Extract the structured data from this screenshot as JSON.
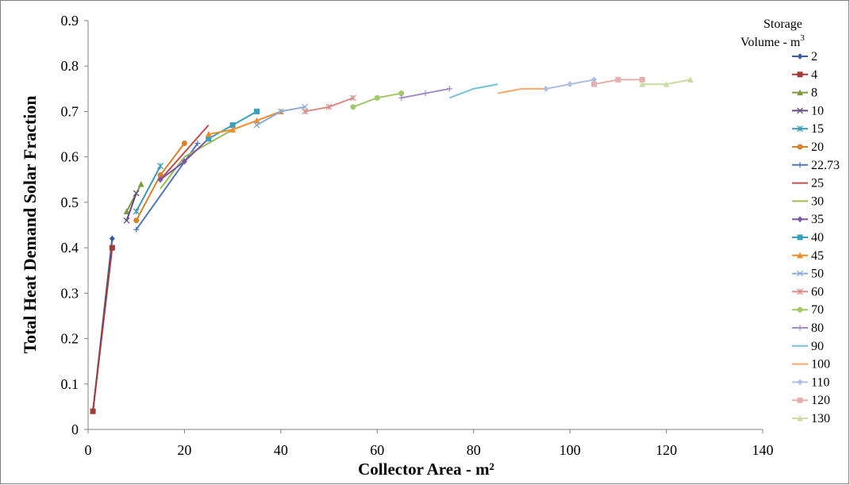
{
  "chart_data": {
    "type": "line",
    "xlabel": "Collector Area - m²",
    "ylabel": "Total Heat Demand Solar Fraction",
    "xlim": [
      0,
      140
    ],
    "ylim": [
      0,
      0.9
    ],
    "x_ticks": [
      0,
      20,
      40,
      60,
      80,
      100,
      120,
      140
    ],
    "y_ticks": [
      0,
      0.1,
      0.2,
      0.3,
      0.4,
      0.5,
      0.6,
      0.7,
      0.8,
      0.9
    ],
    "grid": false,
    "legend_title_line1": "Storage",
    "legend_title_line2": "Volume - m",
    "legend_title_sup": "3",
    "legend_position": "right",
    "series": [
      {
        "name": "2",
        "color": "#3a5f9e",
        "marker": "diamond",
        "x": [
          1,
          5
        ],
        "y": [
          0.04,
          0.42
        ]
      },
      {
        "name": "4",
        "color": "#a33b39",
        "marker": "square",
        "x": [
          1,
          5
        ],
        "y": [
          0.04,
          0.4
        ]
      },
      {
        "name": "8",
        "color": "#7f9a3f",
        "marker": "triangle",
        "x": [
          8,
          11
        ],
        "y": [
          0.48,
          0.54
        ]
      },
      {
        "name": "10",
        "color": "#634a85",
        "marker": "x",
        "x": [
          8,
          10
        ],
        "y": [
          0.46,
          0.52
        ]
      },
      {
        "name": "15",
        "color": "#3a9ab5",
        "marker": "star",
        "x": [
          10,
          15
        ],
        "y": [
          0.48,
          0.58
        ]
      },
      {
        "name": "20",
        "color": "#d9822b",
        "marker": "circle",
        "x": [
          10,
          15,
          20
        ],
        "y": [
          0.46,
          0.56,
          0.63
        ]
      },
      {
        "name": "22.73",
        "color": "#4f79bc",
        "marker": "plus",
        "x": [
          10,
          22.73
        ],
        "y": [
          0.44,
          0.63
        ]
      },
      {
        "name": "25",
        "color": "#c0504d",
        "marker": "none",
        "x": [
          15,
          25
        ],
        "y": [
          0.55,
          0.67
        ]
      },
      {
        "name": "30",
        "color": "#9bbb59",
        "marker": "none",
        "x": [
          15,
          20,
          30
        ],
        "y": [
          0.53,
          0.6,
          0.66
        ]
      },
      {
        "name": "35",
        "color": "#7a56a4",
        "marker": "diamond",
        "x": [
          15,
          20,
          25
        ],
        "y": [
          0.55,
          0.59,
          0.64
        ]
      },
      {
        "name": "40",
        "color": "#3aa0bf",
        "marker": "square",
        "x": [
          25,
          30,
          35
        ],
        "y": [
          0.64,
          0.67,
          0.7
        ]
      },
      {
        "name": "45",
        "color": "#f28c28",
        "marker": "triangle",
        "x": [
          25,
          30,
          35,
          40
        ],
        "y": [
          0.65,
          0.66,
          0.68,
          0.7
        ]
      },
      {
        "name": "50",
        "color": "#8eaad6",
        "marker": "x",
        "x": [
          35,
          40,
          45
        ],
        "y": [
          0.67,
          0.7,
          0.71
        ]
      },
      {
        "name": "60",
        "color": "#d98c8a",
        "marker": "star",
        "x": [
          45,
          50,
          55
        ],
        "y": [
          0.7,
          0.71,
          0.73
        ]
      },
      {
        "name": "70",
        "color": "#a4c76a",
        "marker": "circle",
        "x": [
          55,
          60,
          65
        ],
        "y": [
          0.71,
          0.73,
          0.74
        ]
      },
      {
        "name": "80",
        "color": "#a48dc4",
        "marker": "plus",
        "x": [
          65,
          70,
          75
        ],
        "y": [
          0.73,
          0.74,
          0.75
        ]
      },
      {
        "name": "90",
        "color": "#73c2d6",
        "marker": "none",
        "x": [
          75,
          80,
          85
        ],
        "y": [
          0.73,
          0.75,
          0.76
        ]
      },
      {
        "name": "100",
        "color": "#f9a86c",
        "marker": "none",
        "x": [
          85,
          90,
          95
        ],
        "y": [
          0.74,
          0.75,
          0.75
        ]
      },
      {
        "name": "110",
        "color": "#aebfe2",
        "marker": "diamond",
        "x": [
          95,
          100,
          105
        ],
        "y": [
          0.75,
          0.76,
          0.77
        ]
      },
      {
        "name": "120",
        "color": "#e3b0af",
        "marker": "square",
        "x": [
          105,
          110,
          115
        ],
        "y": [
          0.76,
          0.77,
          0.77
        ]
      },
      {
        "name": "130",
        "color": "#c9dca6",
        "marker": "triangle",
        "x": [
          115,
          120,
          125
        ],
        "y": [
          0.76,
          0.76,
          0.77
        ]
      }
    ]
  }
}
